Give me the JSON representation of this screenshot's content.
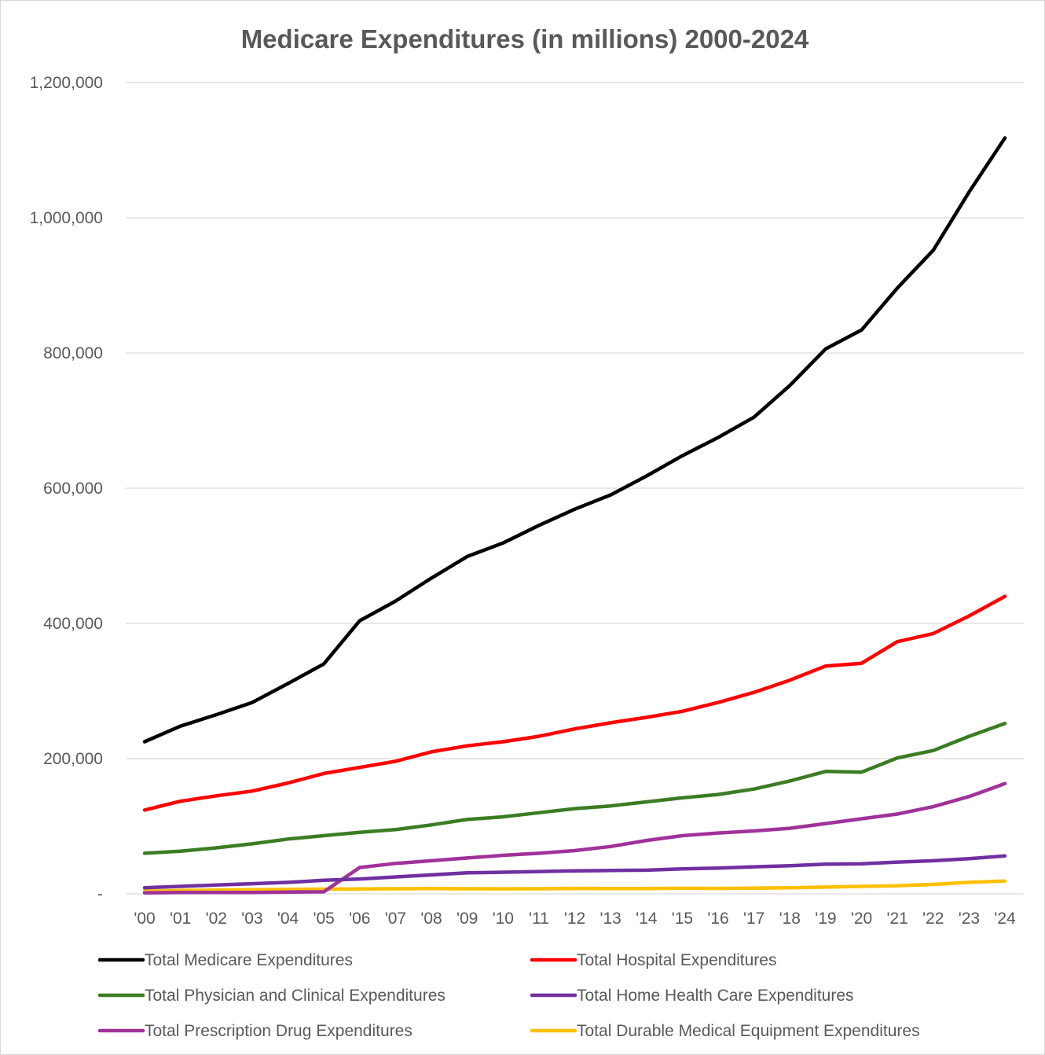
{
  "chart_data": {
    "type": "line",
    "title": "Medicare Expenditures (in millions) 2000-2024",
    "xlabel": "",
    "ylabel": "",
    "ylim": [
      0,
      1200000
    ],
    "y_ticks": [
      {
        "value": 0,
        "label": "-"
      },
      {
        "value": 200000,
        "label": "200,000"
      },
      {
        "value": 400000,
        "label": "400,000"
      },
      {
        "value": 600000,
        "label": "600,000"
      },
      {
        "value": 800000,
        "label": "800,000"
      },
      {
        "value": 1000000,
        "label": "1,000,000"
      },
      {
        "value": 1200000,
        "label": "1,200,000"
      }
    ],
    "grid": true,
    "legend_position": "bottom",
    "categories": [
      "'00",
      "'01",
      "'02",
      "'03",
      "'04",
      "'05",
      "'06",
      "'07",
      "'08",
      "'09",
      "'10",
      "'11",
      "'12",
      "'13",
      "'14",
      "'15",
      "'16",
      "'17",
      "'18",
      "'19",
      "'20",
      "'21",
      "'22",
      "'23",
      "'24"
    ],
    "series": [
      {
        "name": "Total Medicare Expenditures",
        "color": "#000000",
        "values": [
          225000,
          248000,
          265000,
          283000,
          311000,
          340000,
          404000,
          433000,
          467000,
          499000,
          519000,
          545000,
          569000,
          590000,
          618000,
          648000,
          675000,
          705000,
          752000,
          806000,
          834000,
          896000,
          952000,
          1038000,
          1118000
        ]
      },
      {
        "name": "Total Hospital Expenditures",
        "color": "#ff0000",
        "values": [
          124000,
          137000,
          145000,
          152000,
          164000,
          178000,
          187000,
          196000,
          210000,
          219000,
          225000,
          233000,
          244000,
          253000,
          261000,
          270000,
          283000,
          298000,
          316000,
          337000,
          341000,
          373000,
          385000,
          411000,
          440000
        ]
      },
      {
        "name": "Total Physician and Clinical Expenditures",
        "color": "#3a7d22",
        "values": [
          60000,
          63000,
          68000,
          74000,
          81000,
          86000,
          91000,
          95000,
          102000,
          110000,
          114000,
          120000,
          126000,
          130000,
          136000,
          142000,
          147000,
          155000,
          167000,
          181000,
          180000,
          201000,
          212000,
          233000,
          252000
        ]
      },
      {
        "name": "Total Home Health Care Expenditures",
        "color": "#7030a0",
        "values": [
          9000,
          11000,
          13000,
          15000,
          17000,
          20000,
          22000,
          25000,
          28000,
          31000,
          32000,
          33000,
          34000,
          34500,
          35000,
          37000,
          38000,
          40000,
          41500,
          44000,
          44500,
          47000,
          49000,
          52000,
          56000
        ]
      },
      {
        "name": "Total Prescription Drug Expenditures",
        "color": "#a0329a",
        "values": [
          1500,
          2000,
          2000,
          2000,
          2500,
          3000,
          39000,
          45000,
          49000,
          53000,
          57000,
          60000,
          64000,
          70000,
          79000,
          86000,
          90000,
          93000,
          97000,
          104000,
          111000,
          118000,
          129000,
          144000,
          163000
        ]
      },
      {
        "name": "Total Durable Medical Equipment Expenditures",
        "color": "#ffc000",
        "values": [
          4000,
          5000,
          5500,
          6000,
          6500,
          7000,
          7200,
          7500,
          7800,
          7600,
          7400,
          7600,
          8000,
          7800,
          7900,
          8200,
          8000,
          8500,
          9000,
          10000,
          11000,
          12000,
          14000,
          17000,
          19000
        ]
      }
    ]
  }
}
